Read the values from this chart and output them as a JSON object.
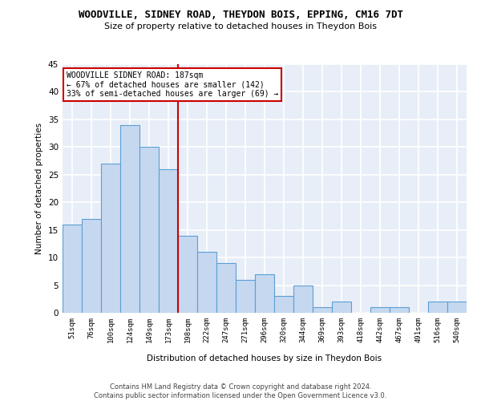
{
  "title": "WOODVILLE, SIDNEY ROAD, THEYDON BOIS, EPPING, CM16 7DT",
  "subtitle": "Size of property relative to detached houses in Theydon Bois",
  "xlabel": "Distribution of detached houses by size in Theydon Bois",
  "ylabel": "Number of detached properties",
  "categories": [
    "51sqm",
    "76sqm",
    "100sqm",
    "124sqm",
    "149sqm",
    "173sqm",
    "198sqm",
    "222sqm",
    "247sqm",
    "271sqm",
    "296sqm",
    "320sqm",
    "344sqm",
    "369sqm",
    "393sqm",
    "418sqm",
    "442sqm",
    "467sqm",
    "491sqm",
    "516sqm",
    "540sqm"
  ],
  "values": [
    16,
    17,
    27,
    34,
    30,
    26,
    14,
    11,
    9,
    6,
    7,
    3,
    5,
    1,
    2,
    0,
    1,
    1,
    0,
    2,
    2
  ],
  "bar_color": "#c5d8f0",
  "bar_edge_color": "#5a9fd4",
  "vline_x": 5.5,
  "vline_color": "#cc0000",
  "annotation_line1": "WOODVILLE SIDNEY ROAD: 187sqm",
  "annotation_line2": "← 67% of detached houses are smaller (142)",
  "annotation_line3": "33% of semi-detached houses are larger (69) →",
  "annotation_box_color": "#cc0000",
  "ylim": [
    0,
    45
  ],
  "yticks": [
    0,
    5,
    10,
    15,
    20,
    25,
    30,
    35,
    40,
    45
  ],
  "background_color": "#e8eef8",
  "grid_color": "#ffffff",
  "footer": "Contains HM Land Registry data © Crown copyright and database right 2024.\nContains public sector information licensed under the Open Government Licence v3.0."
}
